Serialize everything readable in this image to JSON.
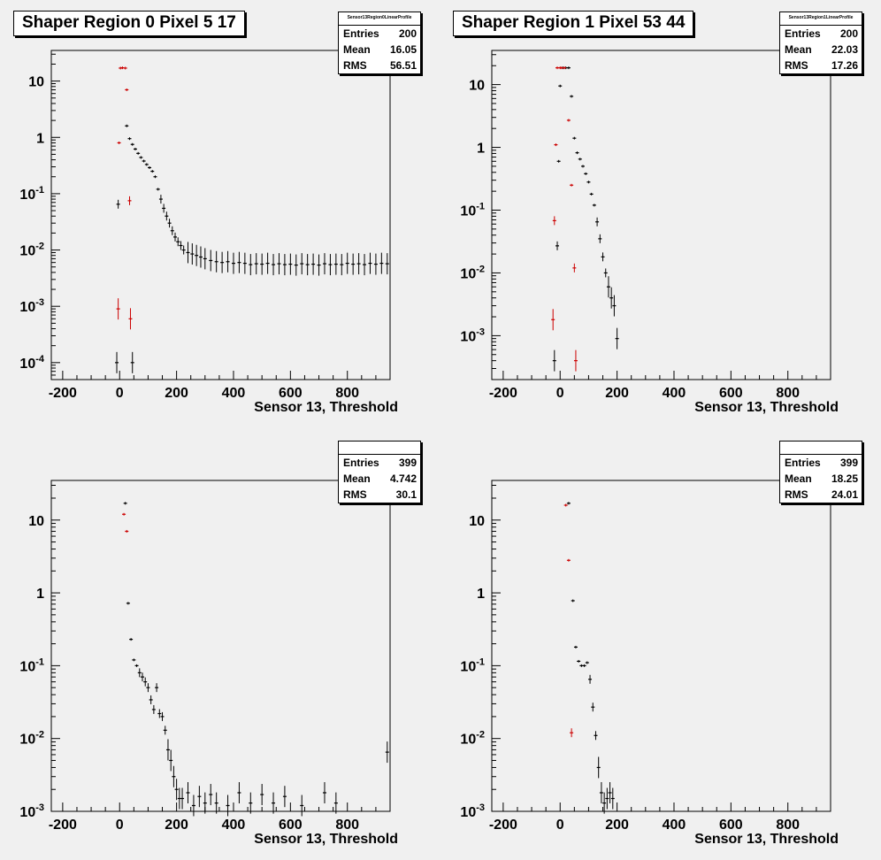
{
  "pads": [
    {
      "id": "pad-0",
      "title": "Shaper Region 0 Pixel 5 17",
      "stats": {
        "name": "Sensor13Region0LinearProfile",
        "entries_label": "Entries",
        "entries": "200",
        "mean_label": "Mean",
        "mean": "16.05",
        "rms_label": "RMS",
        "rms": "56.51"
      },
      "xlabel": "Sensor 13, Threshold",
      "xlim": [
        -240,
        950
      ],
      "ylim": [
        5e-05,
        35
      ],
      "log_y": true,
      "x_ticks": [
        "-200",
        "0",
        "200",
        "400",
        "600",
        "800"
      ],
      "y_ticks": [
        "10",
        "1",
        "10^-1",
        "10^-2",
        "10^-3",
        "10^-4"
      ]
    },
    {
      "id": "pad-1",
      "title": "Shaper Region 1 Pixel 53 44",
      "stats": {
        "name": "Sensor13Region1LinearProfile",
        "entries_label": "Entries",
        "entries": "200",
        "mean_label": "Mean",
        "mean": "22.03",
        "rms_label": "RMS",
        "rms": "17.26"
      },
      "xlabel": "Sensor 13, Threshold",
      "xlim": [
        -240,
        950
      ],
      "ylim": [
        0.0002,
        35
      ],
      "log_y": true,
      "x_ticks": [
        "-200",
        "0",
        "200",
        "400",
        "600",
        "800"
      ],
      "y_ticks": [
        "10",
        "1",
        "10^-1",
        "10^-2",
        "10^-3"
      ]
    },
    {
      "id": "pad-2",
      "title": "",
      "stats": {
        "name": "",
        "entries_label": "Entries",
        "entries": "399",
        "mean_label": "Mean",
        "mean": "4.742",
        "rms_label": "RMS",
        "rms": "30.1"
      },
      "xlabel": "Sensor 13, Threshold",
      "xlim": [
        -240,
        950
      ],
      "ylim": [
        0.001,
        35
      ],
      "log_y": true,
      "x_ticks": [
        "-200",
        "0",
        "200",
        "400",
        "600",
        "800"
      ],
      "y_ticks": [
        "10",
        "1",
        "10^-1",
        "10^-2",
        "10^-3"
      ]
    },
    {
      "id": "pad-3",
      "title": "",
      "stats": {
        "name": "",
        "entries_label": "Entries",
        "entries": "399",
        "mean_label": "Mean",
        "mean": "18.25",
        "rms_label": "RMS",
        "rms": "24.01"
      },
      "xlabel": "Sensor 13, Threshold",
      "xlim": [
        -240,
        950
      ],
      "ylim": [
        0.001,
        35
      ],
      "log_y": true,
      "x_ticks": [
        "-200",
        "0",
        "200",
        "400",
        "600",
        "800"
      ],
      "y_ticks": [
        "10",
        "1",
        "10^-1",
        "10^-2",
        "10^-3"
      ]
    }
  ],
  "colors": {
    "series_black": "#000000",
    "series_red": "#cc0000",
    "background": "#f0f0f0"
  },
  "chart_data": [
    {
      "type": "scatter",
      "series": [
        {
          "color": "#000000",
          "points": [
            [
              -5,
              0.065
            ],
            [
              25,
              1.6
            ],
            [
              35,
              0.95
            ],
            [
              45,
              0.75
            ],
            [
              55,
              0.62
            ],
            [
              65,
              0.52
            ],
            [
              75,
              0.44
            ],
            [
              85,
              0.38
            ],
            [
              95,
              0.33
            ],
            [
              105,
              0.29
            ],
            [
              115,
              0.25
            ],
            [
              125,
              0.2
            ],
            [
              135,
              0.12
            ],
            [
              145,
              0.08
            ],
            [
              155,
              0.055
            ],
            [
              165,
              0.04
            ],
            [
              175,
              0.03
            ],
            [
              185,
              0.022
            ],
            [
              195,
              0.017
            ],
            [
              205,
              0.014
            ],
            [
              215,
              0.012
            ],
            [
              225,
              0.01
            ],
            [
              240,
              0.009
            ],
            [
              255,
              0.0085
            ],
            [
              270,
              0.008
            ],
            [
              285,
              0.0075
            ],
            [
              300,
              0.007
            ],
            [
              320,
              0.0065
            ],
            [
              340,
              0.0062
            ],
            [
              360,
              0.006
            ],
            [
              380,
              0.0062
            ],
            [
              400,
              0.0058
            ],
            [
              420,
              0.006
            ],
            [
              440,
              0.0058
            ],
            [
              460,
              0.0055
            ],
            [
              480,
              0.0057
            ],
            [
              500,
              0.0056
            ],
            [
              520,
              0.0058
            ],
            [
              540,
              0.0055
            ],
            [
              560,
              0.0057
            ],
            [
              580,
              0.0055
            ],
            [
              600,
              0.0056
            ],
            [
              620,
              0.0054
            ],
            [
              640,
              0.0057
            ],
            [
              660,
              0.0055
            ],
            [
              680,
              0.0056
            ],
            [
              700,
              0.0054
            ],
            [
              720,
              0.0057
            ],
            [
              740,
              0.0055
            ],
            [
              760,
              0.0056
            ],
            [
              780,
              0.0055
            ],
            [
              800,
              0.0058
            ],
            [
              820,
              0.0056
            ],
            [
              840,
              0.0057
            ],
            [
              860,
              0.0055
            ],
            [
              880,
              0.0058
            ],
            [
              900,
              0.0056
            ],
            [
              920,
              0.0058
            ],
            [
              940,
              0.0057
            ],
            [
              -10,
              0.0001
            ],
            [
              45,
              0.0001
            ]
          ]
        },
        {
          "color": "#cc0000",
          "points": [
            [
              -2,
              0.8
            ],
            [
              3,
              17
            ],
            [
              10,
              17.2
            ],
            [
              20,
              17
            ],
            [
              25,
              7
            ],
            [
              35,
              0.075
            ],
            [
              -5,
              0.0009
            ],
            [
              38,
              0.0006
            ]
          ]
        }
      ],
      "xlim": [
        -240,
        950
      ],
      "ylim": [
        5e-05,
        35
      ],
      "log_y": true
    },
    {
      "type": "scatter",
      "series": [
        {
          "color": "#000000",
          "points": [
            [
              -10,
              0.027
            ],
            [
              -5,
              0.6
            ],
            [
              0,
              9.5
            ],
            [
              10,
              18.5
            ],
            [
              20,
              18.5
            ],
            [
              30,
              18.5
            ],
            [
              40,
              6.5
            ],
            [
              50,
              1.4
            ],
            [
              60,
              0.82
            ],
            [
              70,
              0.65
            ],
            [
              80,
              0.5
            ],
            [
              90,
              0.38
            ],
            [
              100,
              0.28
            ],
            [
              110,
              0.18
            ],
            [
              120,
              0.12
            ],
            [
              130,
              0.065
            ],
            [
              140,
              0.035
            ],
            [
              150,
              0.018
            ],
            [
              160,
              0.01
            ],
            [
              170,
              0.006
            ],
            [
              180,
              0.004
            ],
            [
              190,
              0.003
            ],
            [
              200,
              0.0009
            ],
            [
              -20,
              0.0004
            ]
          ]
        },
        {
          "color": "#cc0000",
          "points": [
            [
              -25,
              0.0018
            ],
            [
              -20,
              0.068
            ],
            [
              -15,
              1.1
            ],
            [
              -10,
              18.5
            ],
            [
              0,
              18.5
            ],
            [
              5,
              18.5
            ],
            [
              15,
              18.5
            ],
            [
              30,
              2.7
            ],
            [
              40,
              0.25
            ],
            [
              50,
              0.012
            ],
            [
              55,
              0.0004
            ]
          ]
        }
      ],
      "xlim": [
        -240,
        950
      ],
      "ylim": [
        0.0002,
        35
      ],
      "log_y": true
    },
    {
      "type": "scatter",
      "series": [
        {
          "color": "#000000",
          "points": [
            [
              20,
              17
            ],
            [
              30,
              0.72
            ],
            [
              40,
              0.23
            ],
            [
              50,
              0.12
            ],
            [
              60,
              0.1
            ],
            [
              70,
              0.08
            ],
            [
              80,
              0.07
            ],
            [
              90,
              0.06
            ],
            [
              100,
              0.05
            ],
            [
              110,
              0.034
            ],
            [
              120,
              0.025
            ],
            [
              130,
              0.05
            ],
            [
              140,
              0.022
            ],
            [
              150,
              0.02
            ],
            [
              160,
              0.013
            ],
            [
              170,
              0.007
            ],
            [
              180,
              0.005
            ],
            [
              190,
              0.003
            ],
            [
              200,
              0.002
            ],
            [
              210,
              0.0015
            ],
            [
              220,
              0.0015
            ],
            [
              240,
              0.0018
            ],
            [
              260,
              0.0012
            ],
            [
              280,
              0.0016
            ],
            [
              300,
              0.0013
            ],
            [
              320,
              0.0017
            ],
            [
              340,
              0.0013
            ],
            [
              380,
              0.0012
            ],
            [
              420,
              0.0018
            ],
            [
              460,
              0.0013
            ],
            [
              500,
              0.0017
            ],
            [
              540,
              0.0013
            ],
            [
              580,
              0.0016
            ],
            [
              640,
              0.0012
            ],
            [
              720,
              0.0018
            ],
            [
              760,
              0.0013
            ],
            [
              940,
              0.0065
            ]
          ]
        },
        {
          "color": "#cc0000",
          "points": [
            [
              15,
              12
            ],
            [
              25,
              7
            ]
          ]
        }
      ],
      "xlim": [
        -240,
        950
      ],
      "ylim": [
        0.001,
        35
      ],
      "log_y": true
    },
    {
      "type": "scatter",
      "series": [
        {
          "color": "#000000",
          "points": [
            [
              30,
              17
            ],
            [
              45,
              0.78
            ],
            [
              55,
              0.18
            ],
            [
              65,
              0.115
            ],
            [
              75,
              0.1
            ],
            [
              85,
              0.1
            ],
            [
              95,
              0.11
            ],
            [
              105,
              0.065
            ],
            [
              115,
              0.027
            ],
            [
              125,
              0.011
            ],
            [
              135,
              0.004
            ],
            [
              145,
              0.0018
            ],
            [
              155,
              0.0013
            ],
            [
              165,
              0.0015
            ],
            [
              175,
              0.0018
            ],
            [
              185,
              0.0015
            ]
          ]
        },
        {
          "color": "#cc0000",
          "points": [
            [
              20,
              16
            ],
            [
              30,
              2.8
            ],
            [
              40,
              0.012
            ]
          ]
        }
      ],
      "xlim": [
        -240,
        950
      ],
      "ylim": [
        0.001,
        35
      ],
      "log_y": true
    }
  ]
}
